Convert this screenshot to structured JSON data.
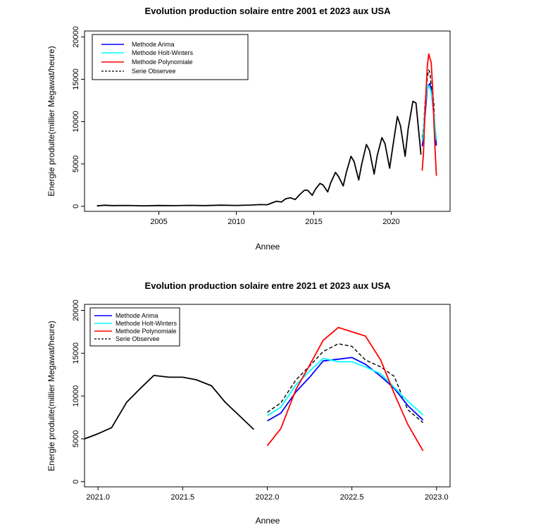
{
  "chart_data": [
    {
      "type": "line",
      "title": "Evolution production solaire entre 2001 et 2023 aux USA",
      "xlabel": "Annee",
      "ylabel": "Energie produite(millier Megawat/heure)",
      "xlim": [
        2000.2,
        2023.8
      ],
      "ylim": [
        -600,
        20700
      ],
      "xticks": [
        2005,
        2010,
        2015,
        2020
      ],
      "yticks": [
        0,
        5000,
        10000,
        15000,
        20000
      ],
      "legend_position": "top-left",
      "legend": [
        {
          "label": "Methode Arima",
          "color": "#0000ff",
          "dash": false
        },
        {
          "label": "Methode Holt-Winters",
          "color": "#00ffff",
          "dash": false
        },
        {
          "label": "Methode Polynomiale",
          "color": "#ff0000",
          "dash": false
        },
        {
          "label": "Serie Observee",
          "color": "#000000",
          "dash": true
        }
      ],
      "series": [
        {
          "name": "Serie Observee",
          "color": "#000000",
          "width": 1.8,
          "dash": false,
          "x": [
            2001.0,
            2001.5,
            2002.0,
            2003.0,
            2004.0,
            2005.0,
            2006.0,
            2007.0,
            2008.0,
            2009.0,
            2010.0,
            2011.0,
            2011.5,
            2012.0,
            2012.3,
            2012.6,
            2012.9,
            2013.2,
            2013.5,
            2013.8,
            2014.1,
            2014.4,
            2014.6,
            2014.9,
            2015.1,
            2015.4,
            2015.6,
            2015.9,
            2016.1,
            2016.4,
            2016.6,
            2016.9,
            2017.1,
            2017.4,
            2017.6,
            2017.9,
            2018.1,
            2018.4,
            2018.6,
            2018.9,
            2019.1,
            2019.4,
            2019.6,
            2019.9,
            2020.1,
            2020.4,
            2020.6,
            2020.9,
            2021.1,
            2021.4,
            2021.6,
            2021.92
          ],
          "y": [
            50,
            120,
            80,
            100,
            60,
            90,
            70,
            110,
            80,
            130,
            100,
            150,
            200,
            180,
            400,
            600,
            500,
            900,
            1000,
            800,
            1400,
            1900,
            1900,
            1300,
            2000,
            2700,
            2500,
            1700,
            2800,
            4000,
            3500,
            2400,
            4000,
            5900,
            5300,
            3100,
            5000,
            7300,
            6600,
            3800,
            6000,
            8100,
            7400,
            4500,
            7000,
            10600,
            9500,
            5900,
            9200,
            12400,
            12200,
            6100
          ]
        },
        {
          "name": "Serie Observee",
          "color": "#000000",
          "width": 1.4,
          "dash": true,
          "x": [
            2022.0,
            2022.08,
            2022.17,
            2022.25,
            2022.33,
            2022.42,
            2022.5,
            2022.58,
            2022.67,
            2022.75,
            2022.83,
            2022.92
          ],
          "y": [
            8100,
            9200,
            11900,
            13500,
            15200,
            16100,
            15800,
            14200,
            13400,
            12300,
            8400,
            6900
          ]
        },
        {
          "name": "Methode Arima",
          "color": "#0000ff",
          "width": 1.8,
          "dash": false,
          "x": [
            2022.0,
            2022.08,
            2022.17,
            2022.25,
            2022.33,
            2022.42,
            2022.5,
            2022.58,
            2022.67,
            2022.75,
            2022.83,
            2022.92
          ],
          "y": [
            7100,
            8000,
            10500,
            12200,
            14100,
            14300,
            14500,
            13700,
            12300,
            10900,
            8900,
            7200
          ]
        },
        {
          "name": "Methode Holt-Winters",
          "color": "#00ffff",
          "width": 1.8,
          "dash": false,
          "x": [
            2022.0,
            2022.08,
            2022.17,
            2022.25,
            2022.33,
            2022.42,
            2022.5,
            2022.58,
            2022.67,
            2022.75,
            2022.83,
            2022.92
          ],
          "y": [
            7700,
            8700,
            11300,
            12900,
            14400,
            14000,
            14000,
            13400,
            12600,
            11000,
            9400,
            7800
          ]
        },
        {
          "name": "Methode Polynomiale",
          "color": "#ff0000",
          "width": 1.8,
          "dash": false,
          "x": [
            2022.0,
            2022.08,
            2022.17,
            2022.25,
            2022.33,
            2022.42,
            2022.5,
            2022.58,
            2022.67,
            2022.75,
            2022.83,
            2022.92
          ],
          "y": [
            4200,
            6200,
            10800,
            13600,
            16500,
            18000,
            17500,
            17000,
            14200,
            10300,
            6700,
            3600
          ]
        }
      ]
    },
    {
      "type": "line",
      "title": "Evolution production solaire entre 2021 et 2023 aux USA",
      "xlabel": "Annee",
      "ylabel": "Energie produite(millier Megawat/heure)",
      "xlim": [
        2020.92,
        2023.08
      ],
      "ylim": [
        -600,
        20700
      ],
      "xticks": [
        2021.0,
        2021.5,
        2022.0,
        2022.5,
        2023.0
      ],
      "xtick_labels": [
        "2021.0",
        "2021.5",
        "2022.0",
        "2022.5",
        "2023.0"
      ],
      "yticks": [
        0,
        5000,
        10000,
        15000,
        20000
      ],
      "legend_position": "top-left",
      "legend": [
        {
          "label": "Methode Arima",
          "color": "#0000ff",
          "dash": false
        },
        {
          "label": "Methode Holt-Winters",
          "color": "#00ffff",
          "dash": false
        },
        {
          "label": "Methode Polynomiale",
          "color": "#ff0000",
          "dash": false
        },
        {
          "label": "Serie Observee",
          "color": "#000000",
          "dash": true
        }
      ],
      "series": [
        {
          "name": "Serie Observee",
          "color": "#000000",
          "width": 1.8,
          "dash": false,
          "x": [
            2020.92,
            2021.0,
            2021.08,
            2021.17,
            2021.25,
            2021.33,
            2021.42,
            2021.5,
            2021.58,
            2021.67,
            2021.75,
            2021.83,
            2021.92
          ],
          "y": [
            5000,
            5600,
            6300,
            9300,
            10900,
            12400,
            12200,
            12200,
            11900,
            11200,
            9300,
            7800,
            6100
          ]
        },
        {
          "name": "Serie Observee",
          "color": "#000000",
          "width": 1.4,
          "dash": true,
          "x": [
            2022.0,
            2022.08,
            2022.17,
            2022.25,
            2022.33,
            2022.42,
            2022.5,
            2022.58,
            2022.67,
            2022.75,
            2022.83,
            2022.92
          ],
          "y": [
            8100,
            9200,
            11900,
            13500,
            15200,
            16100,
            15800,
            14200,
            13400,
            12300,
            8400,
            6900
          ]
        },
        {
          "name": "Methode Arima",
          "color": "#0000ff",
          "width": 1.8,
          "dash": false,
          "x": [
            2022.0,
            2022.08,
            2022.17,
            2022.25,
            2022.33,
            2022.42,
            2022.5,
            2022.58,
            2022.67,
            2022.75,
            2022.83,
            2022.92
          ],
          "y": [
            7100,
            8000,
            10500,
            12200,
            14100,
            14300,
            14500,
            13700,
            12300,
            10900,
            8900,
            7200
          ]
        },
        {
          "name": "Methode Holt-Winters",
          "color": "#00ffff",
          "width": 1.8,
          "dash": false,
          "x": [
            2022.0,
            2022.08,
            2022.17,
            2022.25,
            2022.33,
            2022.42,
            2022.5,
            2022.58,
            2022.67,
            2022.75,
            2022.83,
            2022.92
          ],
          "y": [
            7700,
            8700,
            11300,
            12900,
            14400,
            14000,
            14000,
            13400,
            12600,
            11000,
            9400,
            7800
          ]
        },
        {
          "name": "Methode Polynomiale",
          "color": "#ff0000",
          "width": 1.8,
          "dash": false,
          "x": [
            2022.0,
            2022.08,
            2022.17,
            2022.25,
            2022.33,
            2022.42,
            2022.5,
            2022.58,
            2022.67,
            2022.75,
            2022.83,
            2022.92
          ],
          "y": [
            4200,
            6200,
            10800,
            13600,
            16500,
            18000,
            17500,
            17000,
            14200,
            10300,
            6700,
            3600
          ]
        }
      ]
    }
  ]
}
